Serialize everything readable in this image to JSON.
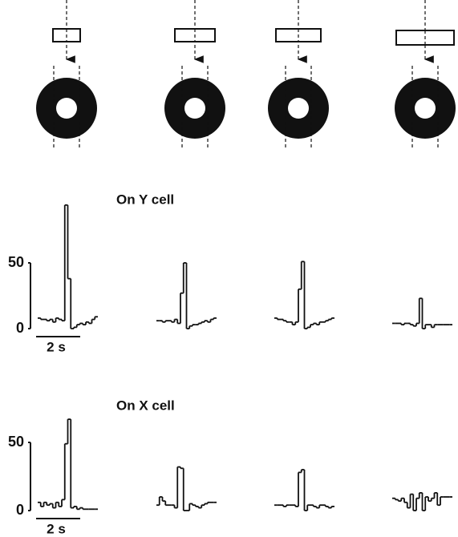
{
  "chart_data": [
    {
      "type": "step",
      "title": "On Y cell",
      "scale_label": "2 s",
      "ylim": [
        0,
        50
      ],
      "yticks": [
        0,
        50
      ],
      "series": [
        {
          "color": "#111111",
          "values": [
            8,
            7,
            7,
            6,
            7,
            5,
            8,
            7,
            6,
            94,
            38,
            0,
            1,
            3,
            4,
            3,
            5,
            4,
            7,
            9
          ]
        },
        {
          "color": "#111111",
          "values": [
            6,
            6,
            5,
            6,
            6,
            5,
            7,
            4,
            27,
            50,
            0,
            2,
            3,
            3,
            4,
            5,
            6,
            5,
            7,
            8
          ]
        },
        {
          "color": "#111111",
          "values": [
            8,
            7,
            7,
            6,
            5,
            5,
            3,
            5,
            30,
            51,
            0,
            1,
            3,
            4,
            3,
            5,
            5,
            6,
            7,
            8
          ]
        },
        {
          "color": "#111111",
          "values": [
            4,
            4,
            4,
            3,
            4,
            4,
            3,
            2,
            4,
            23,
            0,
            3,
            3,
            1,
            3,
            3,
            3,
            3,
            3,
            3
          ]
        }
      ]
    },
    {
      "type": "step",
      "title": "On X cell",
      "scale_label": "2 s",
      "ylim": [
        0,
        50
      ],
      "yticks": [
        0,
        50
      ],
      "series": [
        {
          "color": "#111111",
          "values": [
            6,
            3,
            6,
            4,
            5,
            2,
            6,
            3,
            8,
            49,
            67,
            2,
            3,
            1,
            2,
            1,
            1,
            1,
            1,
            1
          ]
        },
        {
          "color": "#111111",
          "values": [
            4,
            10,
            7,
            4,
            4,
            4,
            2,
            32,
            31,
            0,
            0,
            5,
            4,
            3,
            2,
            4,
            5,
            6,
            6,
            6
          ]
        },
        {
          "color": "#111111",
          "values": [
            4,
            4,
            4,
            3,
            4,
            4,
            4,
            3,
            28,
            30,
            0,
            4,
            4,
            3,
            2,
            4,
            4,
            3,
            2,
            3
          ]
        },
        {
          "color": "#111111",
          "values": [
            9,
            8,
            7,
            9,
            6,
            2,
            12,
            0,
            9,
            13,
            0,
            10,
            7,
            9,
            13,
            4,
            10,
            10,
            10,
            10
          ]
        }
      ]
    }
  ]
}
